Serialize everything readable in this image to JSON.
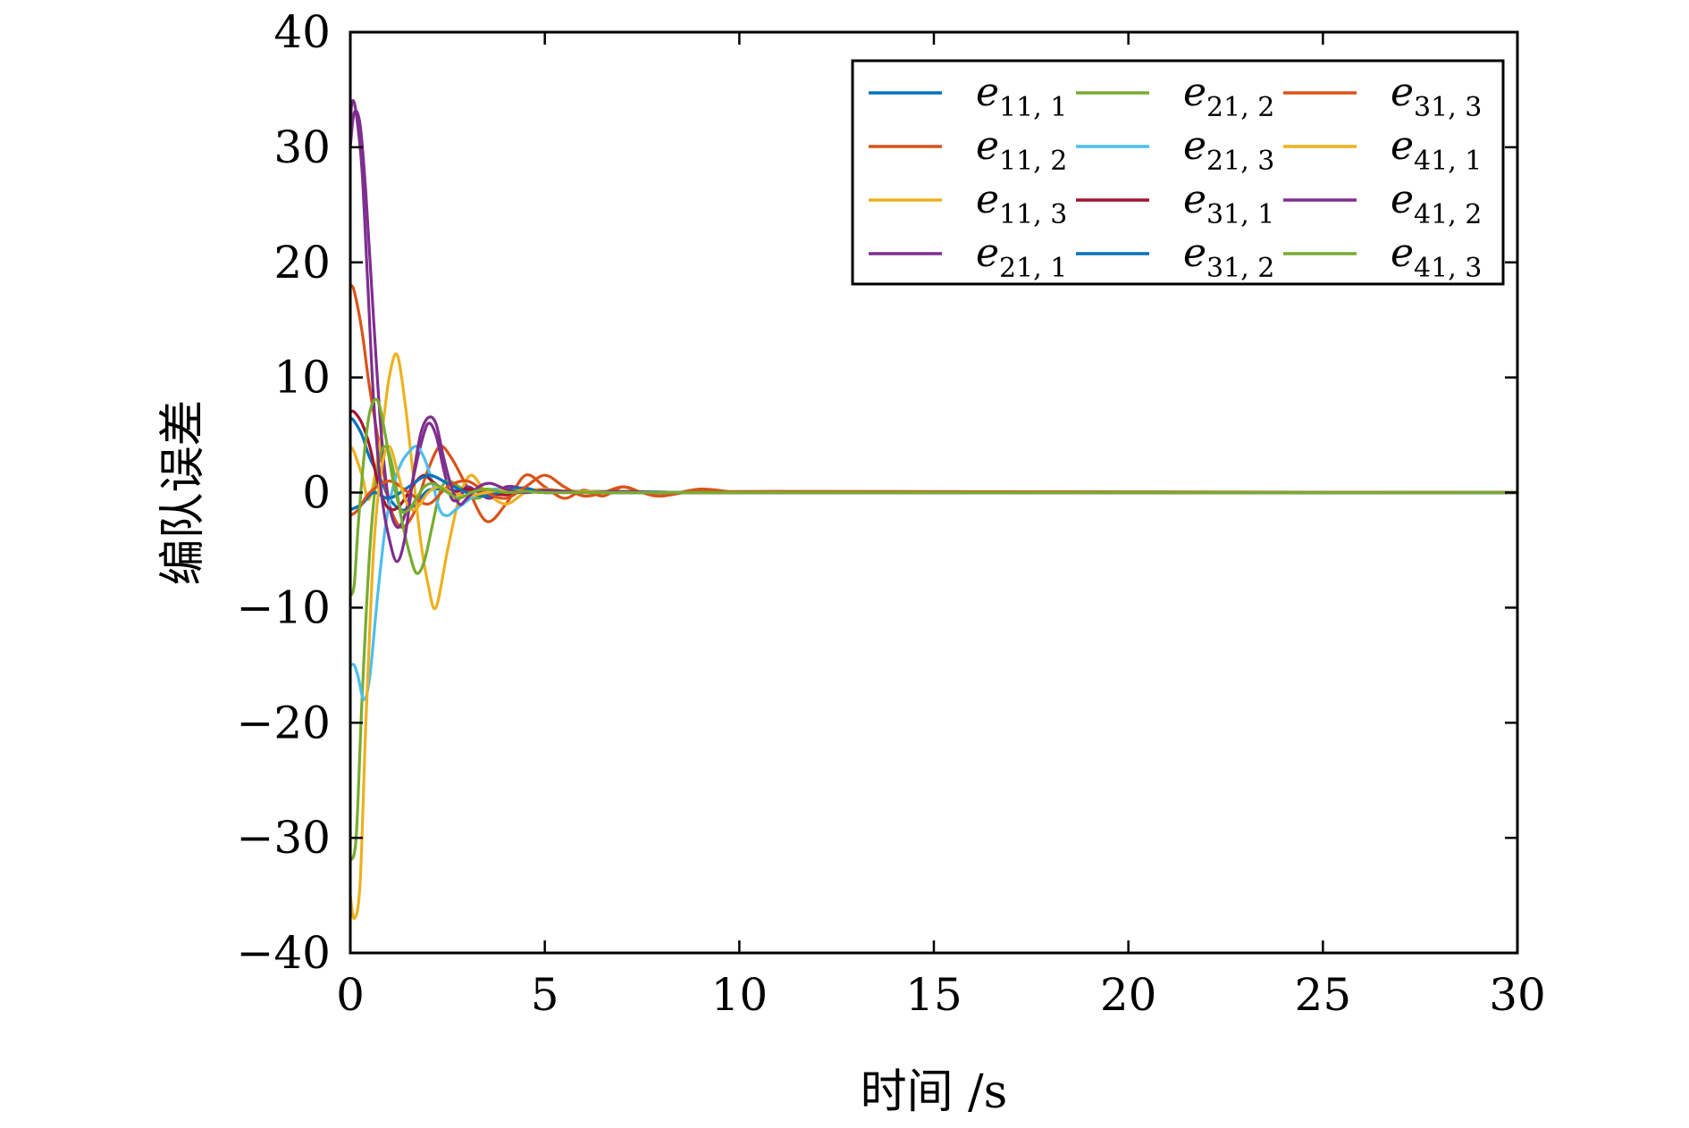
{
  "chart_data": {
    "type": "line",
    "title": "",
    "xlabel": "时间 /s",
    "ylabel": "编队误差",
    "xlim": [
      0,
      30
    ],
    "ylim": [
      -40,
      40
    ],
    "xticks": [
      "0",
      "5",
      "10",
      "15",
      "20",
      "25",
      "30"
    ],
    "yticks": [
      "40",
      "30",
      "20",
      "10",
      "0",
      "−10",
      "−20",
      "−30",
      "−40"
    ],
    "grid": false,
    "legend_position": "top-right",
    "legend_columns": 3,
    "series": [
      {
        "name": "e11,1",
        "base": "e",
        "sub": "11, 1",
        "color": "#0072BD",
        "x": [
          0,
          0.1,
          0.3,
          0.5,
          0.8,
          1.0,
          1.3,
          1.6,
          1.8,
          2.0,
          2.3,
          2.6,
          3.0,
          3.5,
          4.0,
          5.0,
          6.0,
          8.0,
          10.0,
          30.0
        ],
        "y": [
          6.5,
          6.2,
          5.0,
          3.0,
          1.0,
          -0.5,
          -1.5,
          -1.2,
          -0.5,
          0.2,
          0.3,
          0.2,
          0.1,
          0.2,
          0.3,
          0.2,
          0.1,
          0.05,
          0,
          0
        ]
      },
      {
        "name": "e11,2",
        "base": "e",
        "sub": "11, 2",
        "color": "#D95319",
        "x": [
          0,
          0.1,
          0.3,
          0.5,
          0.8,
          1.0,
          1.3,
          1.6,
          1.8,
          2.0,
          2.3,
          2.6,
          3.0,
          3.5,
          4.0,
          4.5,
          5.0,
          5.5,
          6.0,
          6.5,
          7.0,
          7.5,
          8.0,
          9.0,
          10.0,
          11.0,
          13.0,
          30.0
        ],
        "y": [
          18,
          17.5,
          14,
          9,
          3,
          -1,
          -3,
          -2,
          0,
          2,
          4,
          3,
          0.5,
          -2.5,
          -1,
          1.5,
          0.5,
          -0.5,
          0.2,
          -0.3,
          0.5,
          0,
          -0.3,
          0.3,
          0,
          0.1,
          0,
          0
        ]
      },
      {
        "name": "e11,3",
        "base": "e",
        "sub": "11, 3",
        "color": "#EDB120",
        "x": [
          0,
          0.1,
          0.3,
          0.5,
          0.8,
          1.0,
          1.2,
          1.4,
          1.6,
          1.8,
          2.0,
          2.2,
          2.5,
          2.8,
          3.1,
          3.5,
          4.0,
          4.5,
          5.0,
          6.0,
          8.0,
          10.0,
          30.0
        ],
        "y": [
          4,
          3.5,
          1.5,
          -0.5,
          5,
          10,
          12,
          8,
          2,
          -4,
          -8,
          -10,
          -5,
          -0.5,
          1.5,
          0,
          -1,
          0,
          0.3,
          0,
          0,
          0,
          0
        ]
      },
      {
        "name": "e21,1",
        "base": "e",
        "sub": "21, 1",
        "color": "#7E2F8E",
        "x": [
          0,
          0.1,
          0.25,
          0.4,
          0.6,
          0.8,
          1.0,
          1.2,
          1.4,
          1.6,
          1.8,
          2.0,
          2.2,
          2.4,
          2.6,
          2.8,
          3.0,
          3.3,
          3.6,
          4.0,
          4.5,
          5.0,
          6.0,
          7.0,
          8.0,
          10.0,
          30.0
        ],
        "y": [
          30,
          33,
          32,
          26,
          15,
          5,
          -1,
          -3,
          -2,
          1,
          4,
          6,
          5,
          2,
          -0.5,
          -0.5,
          0.5,
          0,
          -0.5,
          0.5,
          0.3,
          0,
          0.1,
          0,
          0,
          0,
          0
        ]
      },
      {
        "name": "e21,2",
        "base": "e",
        "sub": "21, 2",
        "color": "#77AC30",
        "x": [
          0,
          0.15,
          0.3,
          0.5,
          0.7,
          0.9,
          1.1,
          1.3,
          1.5,
          1.7,
          1.9,
          2.1,
          2.3,
          2.5,
          2.8,
          3.2,
          3.6,
          4.0,
          4.5,
          5.0,
          6.0,
          8.0,
          10.0,
          30.0
        ],
        "y": [
          -32,
          -30,
          -18,
          -5,
          2,
          4,
          2,
          -2,
          -5,
          -7,
          -6,
          -3,
          0,
          1,
          0.5,
          -0.5,
          0,
          0.3,
          0,
          0.1,
          0,
          0,
          0,
          0
        ]
      },
      {
        "name": "e21,3",
        "base": "e",
        "sub": "21, 3",
        "color": "#4DBEEE",
        "x": [
          0,
          0.1,
          0.2,
          0.35,
          0.5,
          0.7,
          0.9,
          1.1,
          1.3,
          1.5,
          1.7,
          1.9,
          2.1,
          2.3,
          2.5,
          2.7,
          2.9,
          3.1,
          3.4,
          3.7,
          4.0,
          4.5,
          5.0,
          6.0,
          8.0,
          10.0,
          30.0
        ],
        "y": [
          -15,
          -15,
          -16,
          -18,
          -16,
          -9,
          -3,
          0.5,
          2.5,
          3.5,
          4,
          3,
          1,
          -1.5,
          -2,
          -1.5,
          -1,
          -0.5,
          0,
          0.3,
          0.2,
          0,
          0.1,
          0,
          0,
          0,
          0
        ]
      },
      {
        "name": "e31,1",
        "base": "e",
        "sub": "31, 1",
        "color": "#A2142F",
        "x": [
          0,
          0.1,
          0.3,
          0.5,
          0.7,
          0.9,
          1.1,
          1.3,
          1.5,
          1.7,
          1.9,
          2.1,
          2.3,
          2.6,
          3.0,
          3.5,
          4.0,
          4.5,
          5.0,
          6.0,
          8.0,
          10.0,
          30.0
        ],
        "y": [
          7,
          7,
          6,
          4,
          1,
          -1,
          -1.5,
          -1,
          0,
          1,
          1.5,
          1,
          0.5,
          0,
          0.3,
          0,
          -0.2,
          0.1,
          0,
          0,
          0,
          0,
          0
        ]
      },
      {
        "name": "e31,2",
        "base": "e",
        "sub": "31, 2",
        "color": "#0072BD",
        "x": [
          0,
          0.3,
          0.6,
          1.0,
          1.5,
          2.0,
          2.5,
          3.0,
          3.5,
          4.0,
          4.5,
          5.0,
          6.0,
          8.0,
          10.0,
          30.0
        ],
        "y": [
          -1.5,
          -1,
          0,
          -0.5,
          0.5,
          1.5,
          0.8,
          0,
          -0.3,
          0.2,
          0.4,
          0,
          0.1,
          0,
          0,
          0
        ]
      },
      {
        "name": "e31,3",
        "base": "e",
        "sub": "31, 3",
        "color": "#D95319",
        "x": [
          0,
          0.2,
          0.5,
          1.0,
          1.5,
          2.0,
          2.5,
          3.0,
          3.5,
          4.0,
          4.5,
          5.0,
          5.5,
          6.0,
          6.5,
          7.0,
          7.5,
          8.0,
          9.0,
          10.0,
          11.0,
          30.0
        ],
        "y": [
          -2,
          -1.5,
          0,
          1,
          0,
          -1,
          0.5,
          1,
          0,
          -0.5,
          0.5,
          1.5,
          0.5,
          -0.3,
          0,
          0.5,
          0,
          -0.3,
          0.2,
          0,
          0.1,
          0
        ]
      },
      {
        "name": "e41,1",
        "base": "e",
        "sub": "41, 1",
        "color": "#EDB120",
        "x": [
          0,
          0.1,
          0.25,
          0.4,
          0.6,
          0.8,
          1.0,
          1.2,
          1.4,
          1.6,
          1.8,
          2.0,
          2.3,
          2.6,
          3.0,
          3.5,
          4.0,
          5.0,
          6.0,
          8.0,
          10.0,
          30.0
        ],
        "y": [
          -35,
          -37,
          -34,
          -20,
          -5,
          2,
          4,
          2,
          -0.5,
          -1.5,
          -1,
          0,
          0.5,
          0,
          -0.3,
          0,
          0.2,
          0,
          0.1,
          0,
          0,
          0
        ]
      },
      {
        "name": "e41,2",
        "base": "e",
        "sub": "41, 2",
        "color": "#7E2F8E",
        "x": [
          0,
          0.05,
          0.15,
          0.3,
          0.45,
          0.6,
          0.8,
          1.0,
          1.2,
          1.4,
          1.6,
          1.8,
          2.0,
          2.2,
          2.4,
          2.6,
          2.8,
          3.0,
          3.3,
          3.6,
          4.0,
          4.5,
          5.0,
          6.0,
          7.0,
          8.0,
          10.0,
          30.0
        ],
        "y": [
          32,
          34,
          33,
          28,
          18,
          8,
          0,
          -4,
          -6,
          -4,
          1,
          5,
          6.5,
          6,
          3,
          0.5,
          -1,
          -0.5,
          0.5,
          0.8,
          0.3,
          0,
          0.2,
          0,
          0.1,
          0,
          0,
          0
        ]
      },
      {
        "name": "e41,3",
        "base": "e",
        "sub": "41, 3",
        "color": "#77AC30",
        "x": [
          0,
          0.1,
          0.2,
          0.35,
          0.5,
          0.7,
          0.9,
          1.1,
          1.3,
          1.5,
          1.7,
          1.9,
          2.1,
          2.3,
          2.5,
          2.8,
          3.1,
          3.5,
          4.0,
          4.5,
          5.0,
          6.0,
          8.0,
          10.0,
          30.0
        ],
        "y": [
          -9,
          -8,
          -3,
          3,
          7,
          8,
          5,
          1,
          -1.5,
          -1.5,
          -0.5,
          0.5,
          0.8,
          0.5,
          0,
          -0.5,
          0,
          0.3,
          0,
          0.1,
          0,
          0,
          0,
          0,
          0
        ]
      }
    ]
  }
}
